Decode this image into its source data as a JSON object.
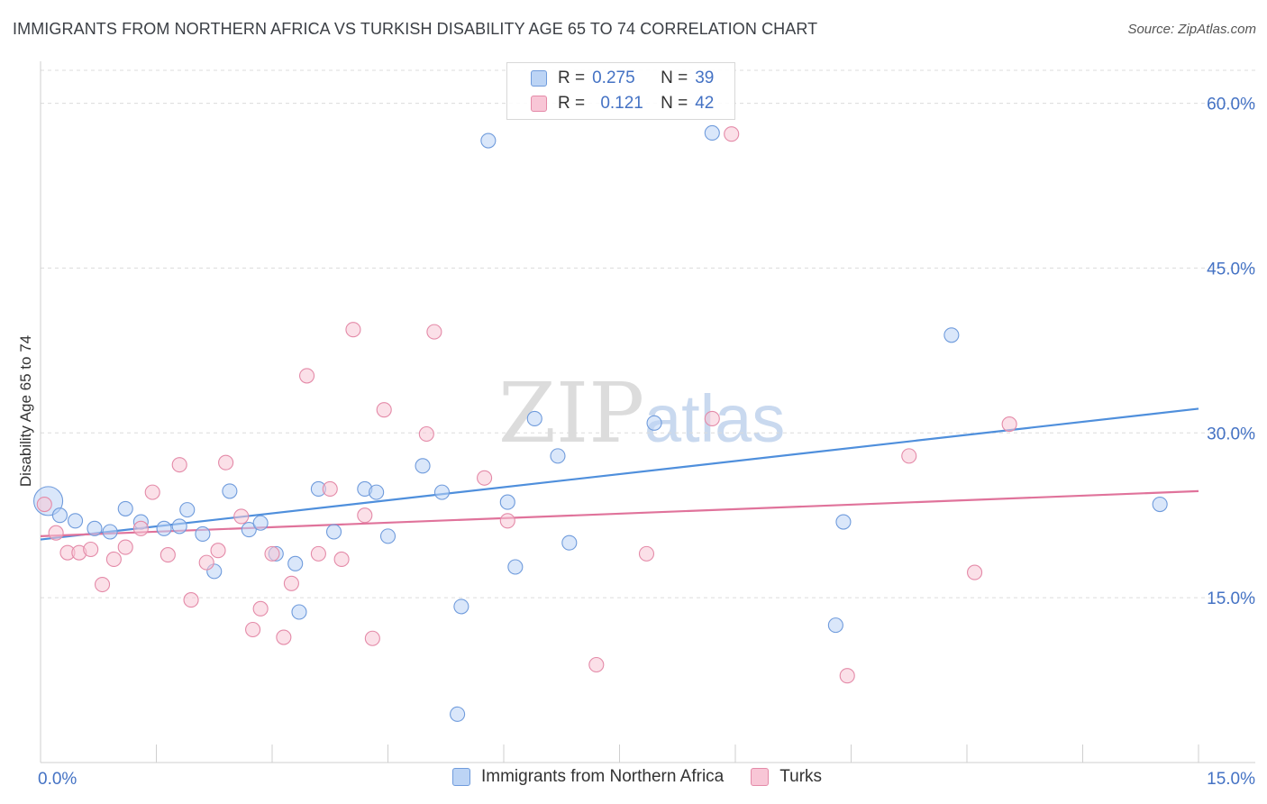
{
  "header": {
    "title": "IMMIGRANTS FROM NORTHERN AFRICA VS TURKISH DISABILITY AGE 65 TO 74 CORRELATION CHART",
    "source": "Source: ZipAtlas.com"
  },
  "watermark": {
    "zip": "ZIP",
    "atlas": "atlas"
  },
  "legend": {
    "r_label": "R =",
    "n_label": "N =",
    "series": [
      {
        "name": "Immigrants from Northern Africa",
        "r": "0.275",
        "n": "39",
        "fill": "#bcd4f5",
        "stroke": "#6f9bdc"
      },
      {
        "name": "Turks",
        "r": "0.121",
        "n": "42",
        "fill": "#f8c6d6",
        "stroke": "#e48aa8"
      }
    ]
  },
  "chart_data": {
    "type": "scatter",
    "title": "IMMIGRANTS FROM NORTHERN AFRICA VS TURKISH DISABILITY AGE 65 TO 74 CORRELATION CHART",
    "xlabel": "",
    "ylabel": "Disability Age 65 to 74",
    "xlim": [
      0,
      15
    ],
    "ylim": [
      0,
      63
    ],
    "x_tick_labels": [
      "0.0%",
      "15.0%"
    ],
    "y_ticks": [
      15,
      30,
      45,
      60
    ],
    "y_tick_labels": [
      "15.0%",
      "30.0%",
      "45.0%",
      "60.0%"
    ],
    "grid": true,
    "legend_position": "top-center",
    "series": [
      {
        "name": "Immigrants from Northern Africa",
        "color": "#4f8fdc",
        "trend": {
          "x0": 0,
          "y0": 20.3,
          "x1": 15,
          "y1": 32.2
        },
        "points": [
          {
            "x": 0.1,
            "y": 23.8,
            "big": true
          },
          {
            "x": 0.25,
            "y": 22.5
          },
          {
            "x": 0.45,
            "y": 22.0
          },
          {
            "x": 0.7,
            "y": 21.3
          },
          {
            "x": 0.9,
            "y": 21.0
          },
          {
            "x": 1.1,
            "y": 23.1
          },
          {
            "x": 1.3,
            "y": 21.9
          },
          {
            "x": 1.6,
            "y": 21.3
          },
          {
            "x": 1.8,
            "y": 21.5
          },
          {
            "x": 1.9,
            "y": 23.0
          },
          {
            "x": 2.1,
            "y": 20.8
          },
          {
            "x": 2.25,
            "y": 17.4
          },
          {
            "x": 2.45,
            "y": 24.7
          },
          {
            "x": 2.7,
            "y": 21.2
          },
          {
            "x": 2.85,
            "y": 21.8
          },
          {
            "x": 3.05,
            "y": 19.0
          },
          {
            "x": 3.3,
            "y": 18.1
          },
          {
            "x": 3.35,
            "y": 13.7
          },
          {
            "x": 3.6,
            "y": 24.9
          },
          {
            "x": 3.8,
            "y": 21.0
          },
          {
            "x": 4.2,
            "y": 24.9
          },
          {
            "x": 4.35,
            "y": 24.6
          },
          {
            "x": 4.5,
            "y": 20.6
          },
          {
            "x": 4.95,
            "y": 27.0
          },
          {
            "x": 5.2,
            "y": 24.6
          },
          {
            "x": 5.4,
            "y": 4.4
          },
          {
            "x": 5.45,
            "y": 14.2
          },
          {
            "x": 5.8,
            "y": 56.6
          },
          {
            "x": 6.05,
            "y": 23.7
          },
          {
            "x": 6.15,
            "y": 17.8
          },
          {
            "x": 6.4,
            "y": 31.3
          },
          {
            "x": 6.7,
            "y": 27.9
          },
          {
            "x": 6.85,
            "y": 20.0
          },
          {
            "x": 7.95,
            "y": 30.9
          },
          {
            "x": 8.7,
            "y": 57.3
          },
          {
            "x": 10.3,
            "y": 12.5
          },
          {
            "x": 10.4,
            "y": 21.9
          },
          {
            "x": 11.8,
            "y": 38.9
          },
          {
            "x": 14.5,
            "y": 23.5
          }
        ]
      },
      {
        "name": "Turks",
        "color": "#e0739b",
        "trend": {
          "x0": 0,
          "y0": 20.6,
          "x1": 15,
          "y1": 24.7
        },
        "points": [
          {
            "x": 0.2,
            "y": 20.9
          },
          {
            "x": 0.35,
            "y": 19.1
          },
          {
            "x": 0.5,
            "y": 19.1
          },
          {
            "x": 0.65,
            "y": 19.4
          },
          {
            "x": 0.8,
            "y": 16.2
          },
          {
            "x": 0.95,
            "y": 18.5
          },
          {
            "x": 1.1,
            "y": 19.6
          },
          {
            "x": 1.3,
            "y": 21.3
          },
          {
            "x": 1.45,
            "y": 24.6
          },
          {
            "x": 1.65,
            "y": 18.9
          },
          {
            "x": 1.8,
            "y": 27.1
          },
          {
            "x": 1.95,
            "y": 14.8
          },
          {
            "x": 2.15,
            "y": 18.2
          },
          {
            "x": 2.3,
            "y": 19.3
          },
          {
            "x": 2.4,
            "y": 27.3
          },
          {
            "x": 2.6,
            "y": 22.4
          },
          {
            "x": 2.75,
            "y": 12.1
          },
          {
            "x": 2.85,
            "y": 14.0
          },
          {
            "x": 3.0,
            "y": 19.0
          },
          {
            "x": 3.15,
            "y": 11.4
          },
          {
            "x": 3.25,
            "y": 16.3
          },
          {
            "x": 3.45,
            "y": 35.2
          },
          {
            "x": 3.6,
            "y": 19.0
          },
          {
            "x": 3.75,
            "y": 24.9
          },
          {
            "x": 3.9,
            "y": 18.5
          },
          {
            "x": 4.05,
            "y": 39.4
          },
          {
            "x": 4.2,
            "y": 22.5
          },
          {
            "x": 4.3,
            "y": 11.3
          },
          {
            "x": 4.45,
            "y": 32.1
          },
          {
            "x": 5.0,
            "y": 29.9
          },
          {
            "x": 5.1,
            "y": 39.2
          },
          {
            "x": 5.75,
            "y": 25.9
          },
          {
            "x": 6.05,
            "y": 22.0
          },
          {
            "x": 7.2,
            "y": 8.9
          },
          {
            "x": 7.85,
            "y": 19.0
          },
          {
            "x": 8.7,
            "y": 31.3
          },
          {
            "x": 8.95,
            "y": 57.2
          },
          {
            "x": 10.45,
            "y": 7.9
          },
          {
            "x": 11.25,
            "y": 27.9
          },
          {
            "x": 12.1,
            "y": 17.3
          },
          {
            "x": 12.55,
            "y": 30.8
          },
          {
            "x": 0.05,
            "y": 23.5
          }
        ]
      }
    ]
  }
}
